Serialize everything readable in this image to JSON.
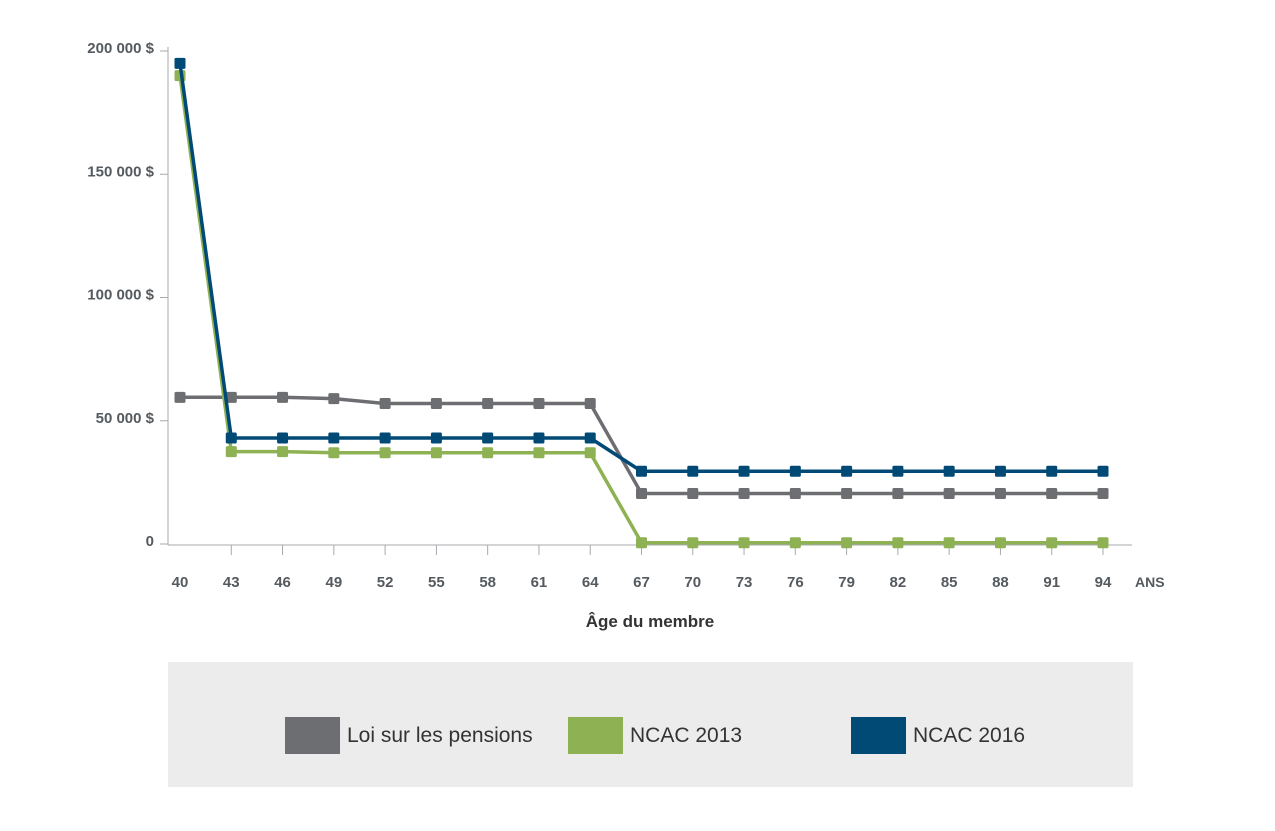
{
  "chart_data": {
    "type": "line",
    "xlabel": "Âge du membre",
    "x_unit": "ANS",
    "x": [
      40,
      43,
      46,
      49,
      52,
      55,
      58,
      61,
      64,
      67,
      70,
      73,
      76,
      79,
      82,
      85,
      88,
      91,
      94
    ],
    "ylim": [
      0,
      200000
    ],
    "yticks": [
      {
        "value": 0,
        "label": "0"
      },
      {
        "value": 50000,
        "label": "50 000 $"
      },
      {
        "value": 100000,
        "label": "100 000 $"
      },
      {
        "value": 150000,
        "label": "150 000 $"
      },
      {
        "value": 200000,
        "label": "200 000 $"
      }
    ],
    "legend_position": "bottom",
    "series": [
      {
        "name": "Loi sur les pensions",
        "color": "#6d6e71",
        "values": [
          59500,
          59500,
          59500,
          59000,
          57000,
          57000,
          57000,
          57000,
          57000,
          20500,
          20500,
          20500,
          20500,
          20500,
          20500,
          20500,
          20500,
          20500,
          20500
        ]
      },
      {
        "name": "NCAC 2013",
        "color": "#8db153",
        "values": [
          190000,
          37500,
          37500,
          37000,
          37000,
          37000,
          37000,
          37000,
          37000,
          500,
          500,
          500,
          500,
          500,
          500,
          500,
          500,
          500,
          500
        ]
      },
      {
        "name": "NCAC 2016",
        "color": "#004a75",
        "values": [
          195000,
          43000,
          43000,
          43000,
          43000,
          43000,
          43000,
          43000,
          43000,
          29500,
          29500,
          29500,
          29500,
          29500,
          29500,
          29500,
          29500,
          29500,
          29500
        ]
      }
    ]
  }
}
